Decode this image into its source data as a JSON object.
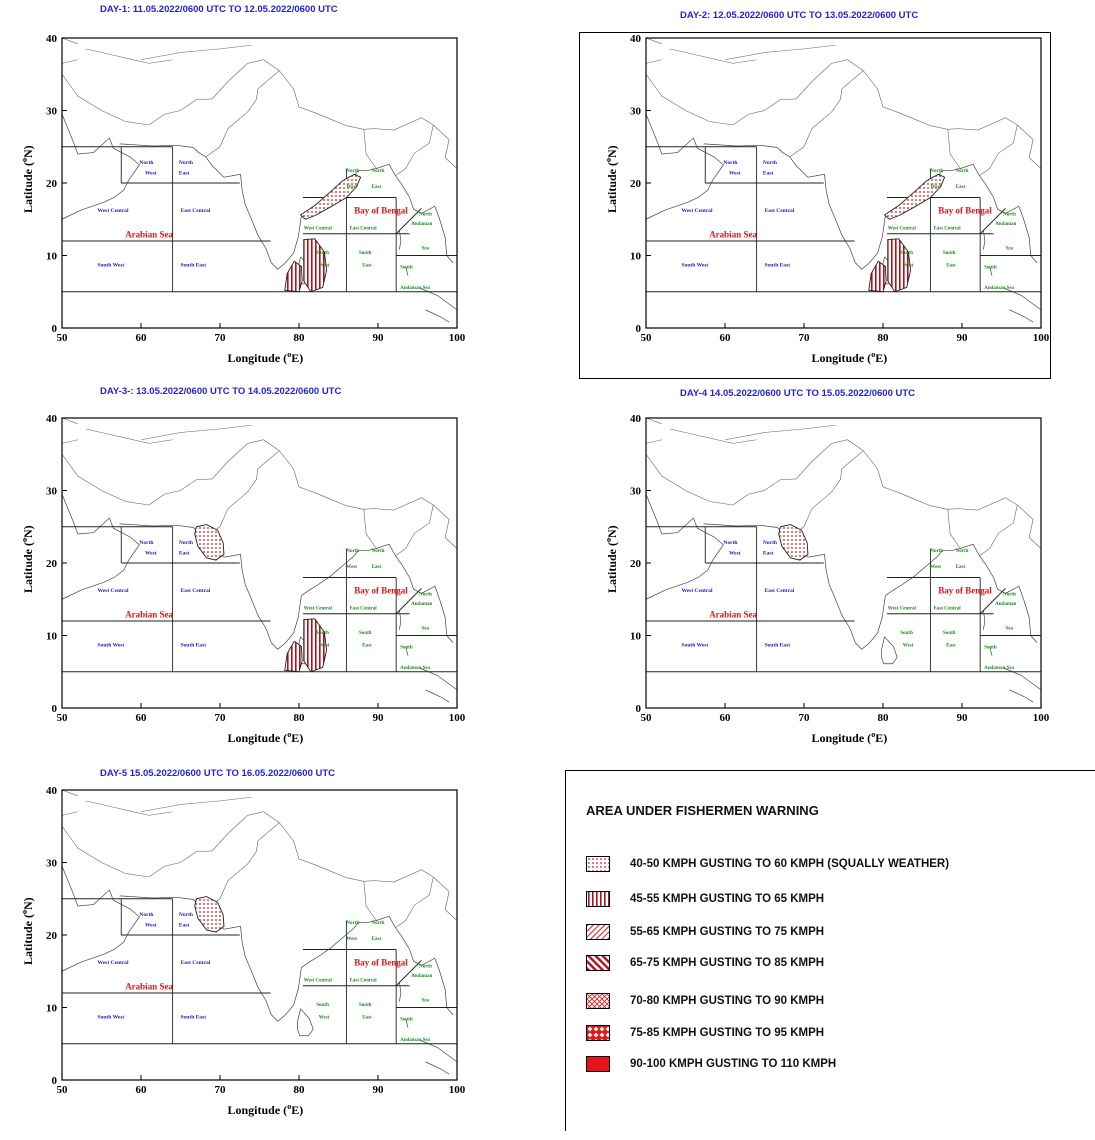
{
  "panels": [
    {
      "id": "day1",
      "title": "DAY-1: 11.05.2022/0600 UTC TO  12.05.2022/0600 UTC",
      "zones": [
        "dotted-northwest-bay",
        "vertical-southwest-bay",
        "vertical-srilanka"
      ]
    },
    {
      "id": "day2",
      "title": "DAY-2: 12.05.2022/0600 UTC TO  13.05.2022/0600 UTC",
      "zones": [
        "dotted-northwest-bay",
        "vertical-southwest-bay",
        "vertical-srilanka"
      ]
    },
    {
      "id": "day3",
      "title": "DAY-3-: 13.05.2022/0600 UTC TO  14.05.2022/0600 UTC",
      "zones": [
        "dotted-gujarat",
        "vertical-southwest-bay",
        "vertical-srilanka"
      ]
    },
    {
      "id": "day4",
      "title": "DAY-4  14.05.2022/0600 UTC TO 15.05.2022/0600 UTC",
      "zones": [
        "dotted-gujarat"
      ]
    },
    {
      "id": "day5",
      "title": "DAY-5  15.05.2022/0600 UTC TO  16.05.2022/0600 UTC",
      "zones": [
        "dotted-gujarat"
      ]
    }
  ],
  "axes": {
    "xlabel": "Longitude (",
    "xlabel_sup": "o",
    "xlabel_end": "E)",
    "ylabel": "Latitude (",
    "ylabel_sup": "o",
    "ylabel_end": "N)",
    "xticks": [
      "50",
      "60",
      "70",
      "80",
      "90",
      "100"
    ],
    "yticks": [
      "0",
      "10",
      "20",
      "30",
      "40"
    ],
    "xlim": [
      50,
      100
    ],
    "ylim": [
      0,
      40
    ]
  },
  "sea_labels": {
    "arabian": "Arabian Sea",
    "bengal": "Bay of Bengal"
  },
  "region_labels": {
    "nw1": "North",
    "nw2": "West",
    "ne1": "North",
    "ne2": "East",
    "wc": "West Central",
    "ec": "East Central",
    "sw": "South West",
    "se": "South East",
    "bn1": "North",
    "bn2": "West",
    "bne1": "North",
    "bne2": "East",
    "bwc": "West Central",
    "bec": "East Central",
    "bsw1": "South",
    "bsw2": "West",
    "bse1": "South",
    "bse2": "East",
    "and1": "North",
    "and2": "Andaman",
    "and3": "Sea",
    "and4": "South",
    "and5": "Andaman Sea"
  },
  "legend": {
    "title": "AREA UNDER FISHERMEN WARNING",
    "items": [
      {
        "label": "40-50  KMPH GUSTING TO 60 KMPH (SQUALLY WEATHER)",
        "pattern": "dots"
      },
      {
        "label": "45-55  KMPH GUSTING TO 65 KMPH",
        "pattern": "vertical"
      },
      {
        "label": "55-65  KMPH GUSTING TO 75 KMPH",
        "pattern": "diag-light"
      },
      {
        "label": "65-75 KMPH GUSTING TO 85 KMPH",
        "pattern": "diag-heavy"
      },
      {
        "label": "70-80 KMPH GUSTING TO 90 KMPH",
        "pattern": "cross"
      },
      {
        "label": "75-85 KMPH GUSTING TO 95 KMPH",
        "pattern": "diamond"
      },
      {
        "label": "90-100 KMPH GUSTING TO 110 KMPH",
        "pattern": "solid"
      }
    ]
  },
  "colors": {
    "warning_red": "#e8141a",
    "region_blue": "#1a1ab8",
    "region_green": "#1a8a1a",
    "title_blue": "#2222dd"
  }
}
